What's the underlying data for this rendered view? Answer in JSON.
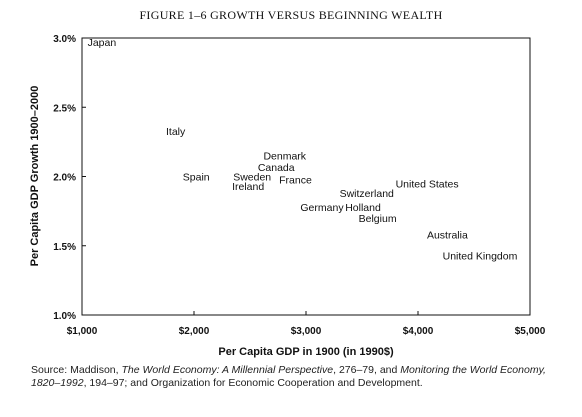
{
  "figure_title": "FIGURE 1–6    GROWTH VERSUS BEGINNING WEALTH",
  "source": {
    "prefix": "Source: Maddison, ",
    "book1": "The World Economy: A Millennial Perspective",
    "mid1": ", 276–79, and ",
    "book2": "Monitoring the World Economy, 1820–1992",
    "suffix": ", 194–97; and Organization for Economic Cooperation and Development."
  },
  "chart_data": {
    "type": "scatter",
    "title": "GROWTH VERSUS BEGINNING WEALTH",
    "xlabel": "Per Capita GDP in 1900 (in 1990$)",
    "ylabel": "Per Capita GDP Growth 1900–2000",
    "xlim": [
      1000,
      5000
    ],
    "ylim": [
      1.0,
      3.0
    ],
    "x_ticks": [
      1000,
      2000,
      3000,
      4000,
      5000
    ],
    "x_tick_labels": [
      "$1,000",
      "$2,000",
      "$3,000",
      "$4,000",
      "$5,000"
    ],
    "y_ticks": [
      1.0,
      1.5,
      2.0,
      2.5,
      3.0
    ],
    "y_tick_labels": [
      "1.0%",
      "1.5%",
      "2.0%",
      "2.5%",
      "3.0%"
    ],
    "grid": false,
    "points": [
      {
        "label": "Japan",
        "x": 1050,
        "y": 2.97
      },
      {
        "label": "Italy",
        "x": 1750,
        "y": 2.33
      },
      {
        "label": "Spain",
        "x": 1900,
        "y": 2.0
      },
      {
        "label": "Sweden",
        "x": 2350,
        "y": 2.0
      },
      {
        "label": "Ireland",
        "x": 2340,
        "y": 1.93
      },
      {
        "label": "Denmark",
        "x": 2620,
        "y": 2.15
      },
      {
        "label": "Canada",
        "x": 2570,
        "y": 2.07
      },
      {
        "label": "France",
        "x": 2760,
        "y": 1.98
      },
      {
        "label": "Switzerland",
        "x": 3300,
        "y": 1.88
      },
      {
        "label": "Germany",
        "x": 2950,
        "y": 1.78
      },
      {
        "label": "Holland",
        "x": 3350,
        "y": 1.78
      },
      {
        "label": "Belgium",
        "x": 3470,
        "y": 1.7
      },
      {
        "label": "United States",
        "x": 3800,
        "y": 1.95
      },
      {
        "label": "Australia",
        "x": 4080,
        "y": 1.58
      },
      {
        "label": "United Kingdom",
        "x": 4220,
        "y": 1.43
      }
    ]
  }
}
